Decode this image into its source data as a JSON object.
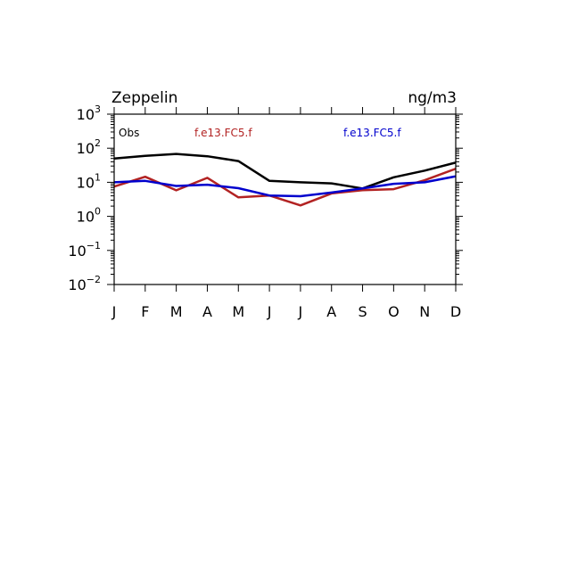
{
  "chart_data": {
    "type": "line",
    "title_left": "Zeppelin",
    "title_right": "ng/m3",
    "y_scale": "log",
    "ylim": [
      0.01,
      1000
    ],
    "y_tick_bases": [
      "10",
      "10",
      "10",
      "10",
      "10",
      "10"
    ],
    "y_tick_exponents": [
      "−2",
      "−1",
      "0",
      "1",
      "2",
      "3"
    ],
    "y_tick_values": [
      0.01,
      0.1,
      1,
      10,
      100,
      1000
    ],
    "categories": [
      "J",
      "F",
      "M",
      "A",
      "M",
      "J",
      "J",
      "A",
      "S",
      "O",
      "N",
      "D"
    ],
    "series": [
      {
        "name": "Obs",
        "color": "#000000",
        "values": [
          50,
          60,
          68,
          58,
          42,
          11,
          10,
          9.3,
          6.6,
          14,
          22,
          38
        ]
      },
      {
        "name": "f.e13.FC5.f",
        "color": "#b22222",
        "values": [
          7.5,
          14.5,
          5.8,
          13.5,
          3.6,
          4.1,
          2.1,
          4.7,
          5.9,
          6.3,
          11.5,
          25
        ]
      },
      {
        "name": "f.e13.FC5.f",
        "color": "#0000cd",
        "values": [
          10,
          11,
          7.8,
          8.5,
          6.7,
          4.1,
          3.9,
          5.0,
          6.6,
          9.0,
          10,
          15
        ]
      }
    ],
    "legend_labels": [
      "Obs",
      "f.e13.FC5.f",
      "f.e13.FC5.f"
    ],
    "legend_placement": "top inside plot",
    "grid": false
  }
}
